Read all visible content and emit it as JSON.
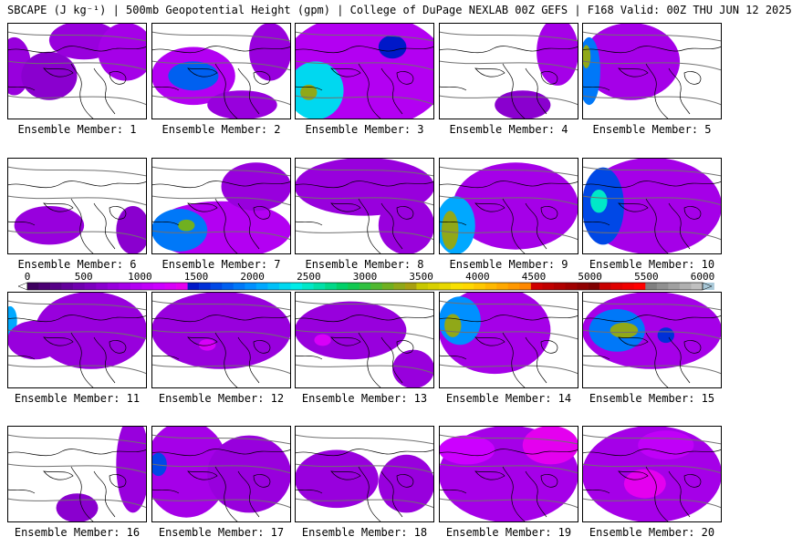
{
  "title": "SBCAPE (J kg⁻¹) | 500mb Geopotential Height (gpm) | College of DuPage NEXLAB 00Z GEFS | F168 Valid: 00Z THU JUN 12 2025",
  "caption_prefix": "Ensemble Member: ",
  "members": [
    {
      "label": "Ensemble Member: 1",
      "blobs": [
        [
          0.05,
          0.45,
          0.12,
          0.3,
          700
        ],
        [
          0.3,
          0.55,
          0.2,
          0.25,
          600
        ],
        [
          0.55,
          0.18,
          0.25,
          0.2,
          700
        ],
        [
          0.85,
          0.3,
          0.2,
          0.3,
          800
        ]
      ]
    },
    {
      "label": "Ensemble Member: 2",
      "blobs": [
        [
          0.3,
          0.55,
          0.3,
          0.3,
          900
        ],
        [
          0.3,
          0.55,
          0.18,
          0.15,
          1700
        ],
        [
          0.65,
          0.85,
          0.25,
          0.15,
          700
        ],
        [
          0.85,
          0.3,
          0.15,
          0.3,
          700
        ]
      ]
    },
    {
      "label": "Ensemble Member: 3",
      "blobs": [
        [
          0.5,
          0.5,
          0.6,
          0.6,
          900
        ],
        [
          0.15,
          0.7,
          0.2,
          0.3,
          2200
        ],
        [
          0.1,
          0.72,
          0.06,
          0.08,
          3200
        ],
        [
          0.7,
          0.25,
          0.1,
          0.12,
          1400
        ]
      ]
    },
    {
      "label": "Ensemble Member: 4",
      "blobs": [
        [
          0.85,
          0.3,
          0.15,
          0.35,
          800
        ],
        [
          0.6,
          0.85,
          0.2,
          0.15,
          600
        ]
      ]
    },
    {
      "label": "Ensemble Member: 5",
      "blobs": [
        [
          0.35,
          0.4,
          0.35,
          0.4,
          800
        ],
        [
          0.05,
          0.5,
          0.08,
          0.35,
          1800
        ],
        [
          0.03,
          0.35,
          0.03,
          0.12,
          3200
        ]
      ]
    },
    {
      "label": "Ensemble Member: 6",
      "blobs": [
        [
          0.3,
          0.7,
          0.25,
          0.2,
          700
        ],
        [
          0.9,
          0.75,
          0.12,
          0.25,
          600
        ]
      ]
    },
    {
      "label": "Ensemble Member: 7",
      "blobs": [
        [
          0.5,
          0.75,
          0.5,
          0.3,
          900
        ],
        [
          0.2,
          0.75,
          0.2,
          0.22,
          1800
        ],
        [
          0.25,
          0.7,
          0.06,
          0.06,
          3100
        ],
        [
          0.75,
          0.3,
          0.25,
          0.25,
          700
        ]
      ]
    },
    {
      "label": "Ensemble Member: 8",
      "blobs": [
        [
          0.5,
          0.3,
          0.5,
          0.3,
          700
        ],
        [
          0.8,
          0.7,
          0.2,
          0.3,
          700
        ]
      ]
    },
    {
      "label": "Ensemble Member: 9",
      "blobs": [
        [
          0.55,
          0.5,
          0.45,
          0.45,
          800
        ],
        [
          0.12,
          0.7,
          0.14,
          0.3,
          2000
        ],
        [
          0.08,
          0.75,
          0.06,
          0.2,
          3200
        ]
      ]
    },
    {
      "label": "Ensemble Member: 10",
      "blobs": [
        [
          0.5,
          0.5,
          0.5,
          0.5,
          800
        ],
        [
          0.15,
          0.5,
          0.15,
          0.4,
          1600
        ],
        [
          0.12,
          0.45,
          0.06,
          0.12,
          2400
        ]
      ]
    },
    {
      "label": "Ensemble Member: 11",
      "blobs": [
        [
          0.6,
          0.4,
          0.4,
          0.4,
          700
        ],
        [
          0.02,
          0.3,
          0.05,
          0.15,
          2000
        ],
        [
          0.2,
          0.5,
          0.2,
          0.2,
          700
        ]
      ]
    },
    {
      "label": "Ensemble Member: 12",
      "blobs": [
        [
          0.5,
          0.4,
          0.5,
          0.4,
          700
        ],
        [
          0.4,
          0.55,
          0.06,
          0.06,
          1200
        ]
      ]
    },
    {
      "label": "Ensemble Member: 13",
      "blobs": [
        [
          0.4,
          0.4,
          0.4,
          0.3,
          700
        ],
        [
          0.85,
          0.8,
          0.15,
          0.2,
          700
        ],
        [
          0.2,
          0.5,
          0.06,
          0.06,
          1200
        ]
      ]
    },
    {
      "label": "Ensemble Member: 14",
      "blobs": [
        [
          0.4,
          0.4,
          0.4,
          0.45,
          800
        ],
        [
          0.15,
          0.3,
          0.15,
          0.25,
          1900
        ],
        [
          0.1,
          0.35,
          0.06,
          0.12,
          3200
        ]
      ]
    },
    {
      "label": "Ensemble Member: 15",
      "blobs": [
        [
          0.5,
          0.4,
          0.5,
          0.4,
          800
        ],
        [
          0.25,
          0.4,
          0.2,
          0.22,
          1800
        ],
        [
          0.3,
          0.4,
          0.1,
          0.08,
          3200
        ],
        [
          0.6,
          0.45,
          0.06,
          0.08,
          1500
        ]
      ]
    },
    {
      "label": "Ensemble Member: 16",
      "blobs": [
        [
          0.9,
          0.4,
          0.12,
          0.5,
          700
        ],
        [
          0.5,
          0.85,
          0.15,
          0.15,
          600
        ]
      ]
    },
    {
      "label": "Ensemble Member: 17",
      "blobs": [
        [
          0.25,
          0.45,
          0.3,
          0.5,
          800
        ],
        [
          0.05,
          0.4,
          0.06,
          0.12,
          1600
        ],
        [
          0.7,
          0.5,
          0.3,
          0.4,
          700
        ]
      ]
    },
    {
      "label": "Ensemble Member: 18",
      "blobs": [
        [
          0.3,
          0.55,
          0.3,
          0.3,
          700
        ],
        [
          0.8,
          0.6,
          0.2,
          0.3,
          700
        ]
      ]
    },
    {
      "label": "Ensemble Member: 19",
      "blobs": [
        [
          0.5,
          0.5,
          0.5,
          0.5,
          800
        ],
        [
          0.8,
          0.2,
          0.2,
          0.2,
          1300
        ],
        [
          0.2,
          0.25,
          0.2,
          0.15,
          1100
        ]
      ]
    },
    {
      "label": "Ensemble Member: 20",
      "blobs": [
        [
          0.5,
          0.5,
          0.5,
          0.5,
          800
        ],
        [
          0.45,
          0.6,
          0.15,
          0.15,
          1300
        ],
        [
          0.6,
          0.2,
          0.2,
          0.15,
          1000
        ]
      ]
    }
  ],
  "colorbar": {
    "tick_labels": [
      "0",
      "500",
      "1000",
      "1500",
      "2000",
      "2500",
      "3000",
      "3500",
      "4000",
      "4500",
      "5000",
      "5500",
      "6000"
    ],
    "min": 0,
    "max": 6000,
    "step": 100,
    "colors": [
      "#ffffff",
      "#3e005f",
      "#4b0073",
      "#560087",
      "#63009b",
      "#7000af",
      "#7c00bf",
      "#8a00cf",
      "#9800dd",
      "#a500e8",
      "#b300f2",
      "#c000f8",
      "#cc00ff",
      "#d800f8",
      "#e400ef",
      "#0018c8",
      "#0030d8",
      "#0048e6",
      "#0060f0",
      "#0078f8",
      "#0090ff",
      "#00a8ff",
      "#00c0f8",
      "#00d8f0",
      "#00ece8",
      "#00e8c8",
      "#00e0a8",
      "#00d888",
      "#00d068",
      "#10c850",
      "#30c040",
      "#50b830",
      "#70b020",
      "#90a818",
      "#a8a010",
      "#c8c800",
      "#d8d000",
      "#e8d800",
      "#f8e000",
      "#ffd800",
      "#ffc800",
      "#ffb800",
      "#ffa800",
      "#ff9800",
      "#ff8800",
      "#d00000",
      "#c00000",
      "#b00000",
      "#a00000",
      "#900000",
      "#800000",
      "#c80000",
      "#e00000",
      "#f00000",
      "#ff0000",
      "#808080",
      "#909090",
      "#a0a0a0",
      "#b0b0b0",
      "#c0c0c0",
      "#a8c8d8"
    ]
  }
}
